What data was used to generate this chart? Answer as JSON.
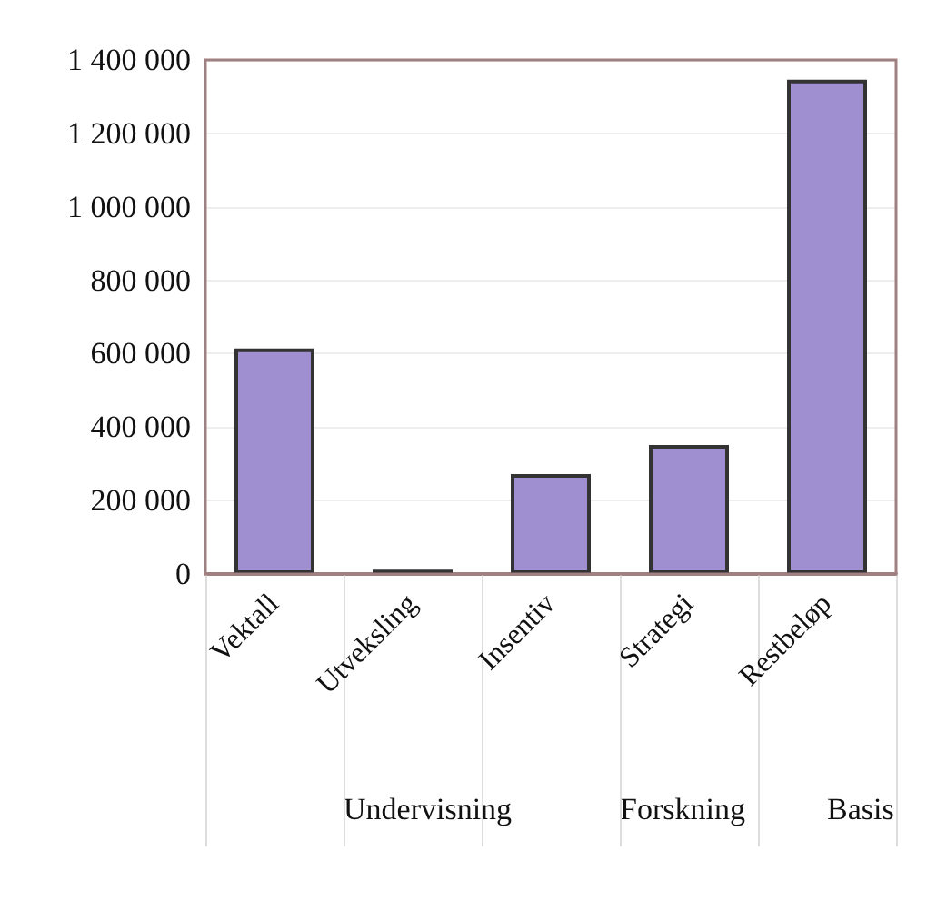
{
  "chart_data": {
    "type": "bar",
    "categories": [
      "Vektall",
      "Utveksling",
      "Insentiv",
      "Strategi",
      "Restbeløp"
    ],
    "values": [
      614000,
      12000,
      272000,
      351000,
      1346000
    ],
    "color": "#9f8fd0",
    "ylim": [
      0,
      1400000
    ],
    "yticks": [
      0,
      200000,
      400000,
      600000,
      800000,
      1000000,
      1200000,
      1400000
    ],
    "grid": "y",
    "annotations": [
      "Undervisning",
      "Forskning",
      "Basis"
    ]
  }
}
